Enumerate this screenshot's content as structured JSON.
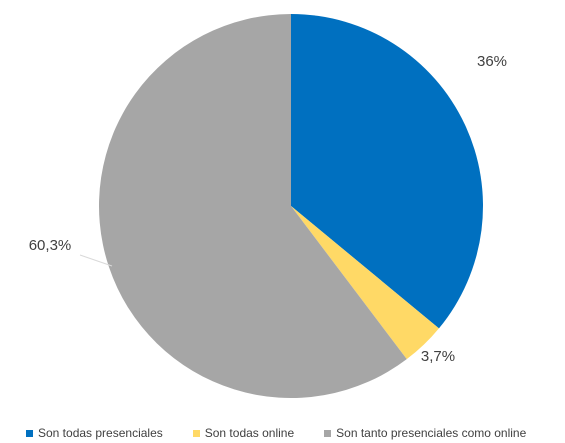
{
  "chart_data": {
    "type": "pie",
    "title": "",
    "slices": [
      {
        "label": "Son todas presenciales",
        "value": 36,
        "display": "36%",
        "color": "#0070c0"
      },
      {
        "label": "Son todas online",
        "value": 3.7,
        "display": "3,7%",
        "color": "#ffd966"
      },
      {
        "label": "Son tanto presenciales como online",
        "value": 60.3,
        "display": "60,3%",
        "color": "#a6a6a6"
      }
    ],
    "start_angle_deg": 0,
    "direction": "clockwise",
    "legend_position": "bottom"
  }
}
